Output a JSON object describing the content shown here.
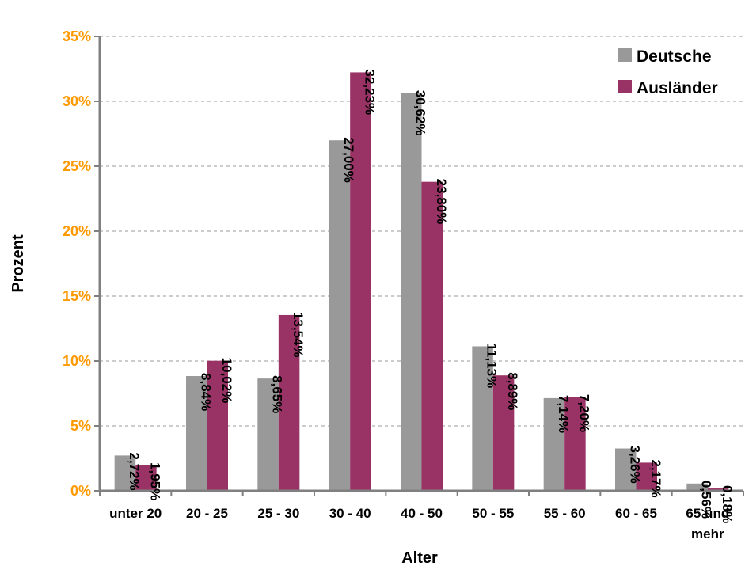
{
  "chart_data": {
    "type": "bar",
    "title": "",
    "xlabel": "Alter",
    "ylabel": "Prozent",
    "ylim": [
      0,
      35
    ],
    "ytick_values": [
      0,
      5,
      10,
      15,
      20,
      25,
      30,
      35
    ],
    "ytick_labels": [
      "0%",
      "5%",
      "10%",
      "15%",
      "20%",
      "25%",
      "30%",
      "35%"
    ],
    "grid": true,
    "legend_position": "top-right",
    "categories": [
      [
        "unter 20"
      ],
      [
        "20 - 25"
      ],
      [
        "25 - 30"
      ],
      [
        "30 - 40"
      ],
      [
        "40 - 50"
      ],
      [
        "50 - 55"
      ],
      [
        "55 - 60"
      ],
      [
        "60 - 65"
      ],
      [
        "65 und",
        "mehr"
      ]
    ],
    "series": [
      {
        "name": "Deutsche",
        "color": "#999999",
        "values": [
          2.72,
          8.84,
          8.65,
          27.0,
          30.62,
          11.13,
          7.14,
          3.26,
          0.56
        ],
        "labels": [
          "2,72%",
          "8,84%",
          "8,65%",
          "27,00%",
          "30,62%",
          "11,13%",
          "7,14%",
          "3,26%",
          "0,56%"
        ]
      },
      {
        "name": "Ausländer",
        "color": "#993366",
        "values": [
          1.95,
          10.02,
          13.54,
          32.23,
          23.8,
          8.89,
          7.2,
          2.17,
          0.18
        ],
        "labels": [
          "1,95%",
          "10,02%",
          "13,54%",
          "32,23%",
          "23,80%",
          "8,89%",
          "7,20%",
          "2,17%",
          "0,18%"
        ]
      }
    ],
    "colors": {
      "ytick": "#FF9900",
      "grid": "#999999",
      "axis": "#808080",
      "text": "#000000"
    }
  }
}
